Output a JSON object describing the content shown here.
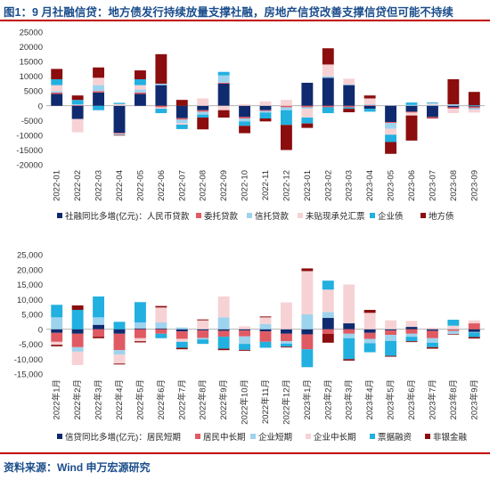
{
  "header": {
    "title": "图1：9 月社融信贷：地方债发行持续放量支撑社融，房地产信贷改善支撑信贷但可能不持续"
  },
  "footer": {
    "source": "资料来源：Wind 申万宏源研究"
  },
  "chart_data": [
    {
      "type": "bar",
      "stacked": true,
      "categories": [
        "2022-01",
        "2022-02",
        "2022-03",
        "2022-04",
        "2022-05",
        "2022-06",
        "2022-07",
        "2022-08",
        "2022-09",
        "2022-10",
        "2022-11",
        "2022-12",
        "2023-01",
        "2023-02",
        "2023-03",
        "2023-04",
        "2023-05",
        "2023-06",
        "2023-07",
        "2023-08",
        "2023-09"
      ],
      "ylim": [
        -20000,
        25000
      ],
      "yticks": [
        -20000,
        -15000,
        -10000,
        -5000,
        0,
        5000,
        10000,
        15000,
        20000,
        25000
      ],
      "series": [
        {
          "name": "社融同比多增(亿元)：人民币贷款",
          "color": "#0f2a6e",
          "values": [
            4000,
            -4500,
            4500,
            -9200,
            4000,
            7000,
            -4200,
            -1500,
            7500,
            -3800,
            -1500,
            0,
            7800,
            9500,
            7000,
            -1000,
            -5500,
            -2000,
            -3800,
            -500,
            -300
          ]
        },
        {
          "name": "委托贷款",
          "color": "#e05a63",
          "values": [
            500,
            200,
            500,
            -300,
            500,
            -500,
            -500,
            -500,
            300,
            -500,
            -300,
            -500,
            -500,
            -500,
            -500,
            200,
            -300,
            -300,
            -300,
            -500,
            -500
          ]
        },
        {
          "name": "信托贷款",
          "color": "#9ed3ee",
          "values": [
            500,
            300,
            2000,
            -400,
            1000,
            500,
            -1200,
            -1000,
            2500,
            -1000,
            -500,
            -1000,
            -500,
            500,
            200,
            300,
            -2000,
            300,
            300,
            500,
            -500
          ]
        },
        {
          "name": "未贴现承兑汇票",
          "color": "#f7d2d5",
          "values": [
            2000,
            -4500,
            2500,
            600,
            1500,
            -500,
            -500,
            2500,
            -1500,
            500,
            1500,
            2000,
            -3000,
            4000,
            2000,
            2000,
            -2000,
            -1000,
            500,
            -1500,
            -1000
          ]
        },
        {
          "name": "企业债",
          "color": "#21b0e0",
          "values": [
            2000,
            1500,
            -1500,
            400,
            2000,
            -1500,
            -1500,
            -1000,
            1200,
            -1500,
            -2000,
            -5000,
            -2000,
            -2000,
            -500,
            -1000,
            -2500,
            800,
            300,
            0,
            200
          ]
        },
        {
          "name": "地方债",
          "color": "#8b0d0d",
          "values": [
            3500,
            1500,
            3500,
            -200,
            3000,
            10000,
            2000,
            -4000,
            -2500,
            -2500,
            -1000,
            -8500,
            -1500,
            5500,
            -1200,
            1000,
            -4000,
            -8500,
            -200,
            8500,
            4500
          ]
        }
      ]
    },
    {
      "type": "bar",
      "stacked": true,
      "categories": [
        "2022年1月",
        "2022年2月",
        "2022年3月",
        "2022年4月",
        "2022年5月",
        "2022年6月",
        "2022年7月",
        "2022年8月",
        "2022年9月",
        "2022年10月",
        "2022年11月",
        "2022年12月",
        "2023年1月",
        "2023年2月",
        "2023年3月",
        "2023年4月",
        "2023年5月",
        "2023年6月",
        "2023年7月",
        "2023年8月",
        "2023年9月"
      ],
      "ylim": [
        -15000,
        25000
      ],
      "yticks": [
        -15000,
        -10000,
        -5000,
        0,
        5000,
        10000,
        15000,
        20000,
        25000
      ],
      "series": [
        {
          "name": "信贷同比多增(亿元)：居民短期",
          "color": "#0f2a6e",
          "values": [
            -1200,
            -1500,
            1500,
            -1500,
            300,
            300,
            -700,
            -400,
            -500,
            -400,
            -700,
            -1500,
            -1700,
            3800,
            2000,
            -1200,
            -400,
            800,
            -500,
            -100,
            -900
          ]
        },
        {
          "name": "居民中长期",
          "color": "#e05a63",
          "values": [
            -3000,
            -4500,
            -2500,
            -5500,
            -3000,
            -1500,
            -2500,
            -2500,
            -2000,
            -2000,
            -3500,
            -2500,
            -5000,
            -1500,
            -1500,
            -2000,
            -1500,
            -1500,
            -2500,
            -500,
            2000
          ]
        },
        {
          "name": "企业短期",
          "color": "#9ed3ee",
          "values": [
            4000,
            -1500,
            2500,
            -1500,
            2000,
            2000,
            600,
            -500,
            4000,
            -2500,
            1800,
            -800,
            5000,
            2000,
            -1500,
            -1500,
            -2000,
            -1000,
            -1500,
            -1000,
            -200
          ]
        },
        {
          "name": "企业中长期",
          "color": "#f7d2d5",
          "values": [
            -1000,
            -4500,
            0,
            -3000,
            -1000,
            5000,
            -1000,
            3000,
            7000,
            1000,
            2200,
            9000,
            14500,
            7500,
            13000,
            5500,
            3000,
            2000,
            500,
            1200,
            1000
          ]
        },
        {
          "name": "票据融资",
          "color": "#21b0e0",
          "values": [
            4200,
            6500,
            7000,
            2500,
            6800,
            -1500,
            -2000,
            -1500,
            -4000,
            -2000,
            -2000,
            -1000,
            -6000,
            3000,
            -7000,
            -3000,
            -5000,
            -1500,
            -1500,
            2000,
            -1500
          ]
        },
        {
          "name": "非银金融",
          "color": "#8b0d0d",
          "values": [
            -500,
            1500,
            -500,
            -300,
            -400,
            500,
            -500,
            300,
            -500,
            -300,
            300,
            -300,
            900,
            -3000,
            -500,
            1000,
            -300,
            -300,
            -500,
            -200,
            -500
          ]
        }
      ]
    }
  ]
}
